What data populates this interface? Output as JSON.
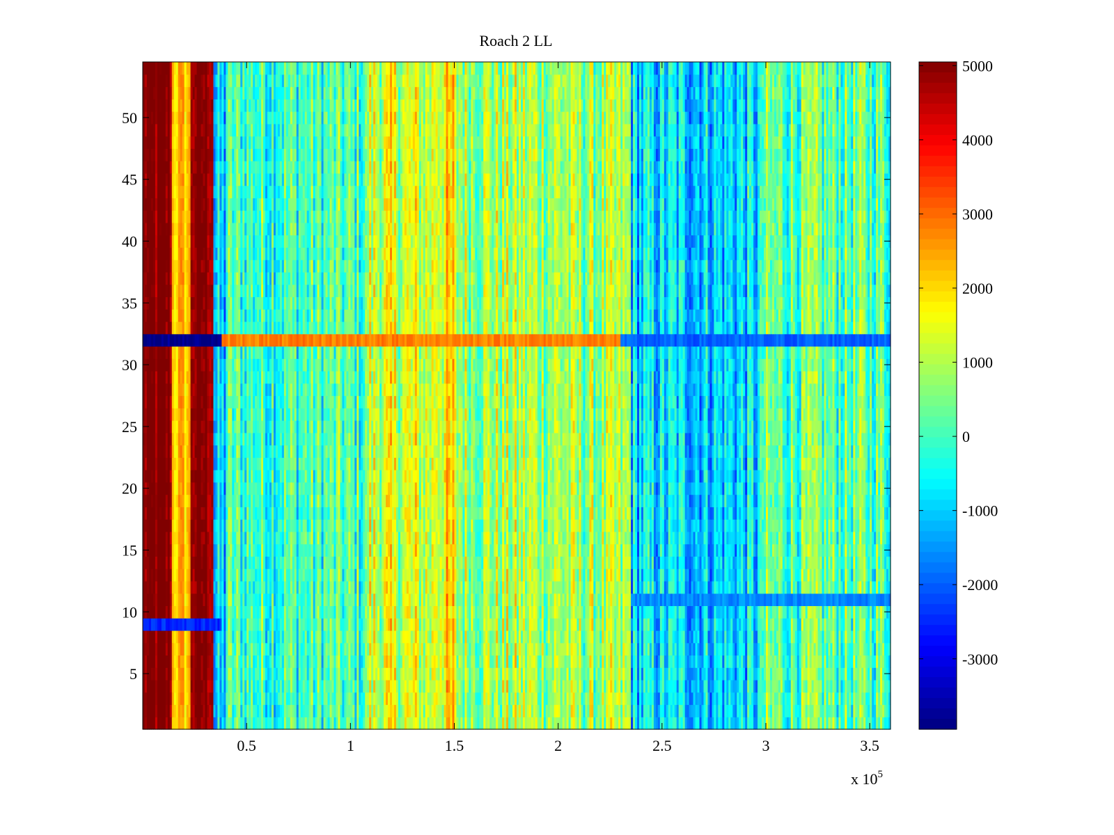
{
  "chart_data": {
    "type": "heatmap",
    "title": "Roach 2 LL",
    "xlabel": "",
    "ylabel": "",
    "x_multiplier_label": "x 10",
    "x_multiplier_exponent": "5",
    "xlim": [
      0,
      3.6
    ],
    "ylim": [
      0.5,
      54.5
    ],
    "x_ticks": [
      0.5,
      1,
      1.5,
      2,
      2.5,
      3,
      3.5
    ],
    "x_tick_labels": [
      "0.5",
      "1",
      "1.5",
      "2",
      "2.5",
      "3",
      "3.5"
    ],
    "y_ticks": [
      5,
      10,
      15,
      20,
      25,
      30,
      35,
      40,
      45,
      50
    ],
    "y_tick_labels": [
      "5",
      "10",
      "15",
      "20",
      "25",
      "30",
      "35",
      "40",
      "45",
      "50"
    ],
    "colorbar": {
      "colormap": "jet",
      "clim": [
        -3950,
        5050
      ],
      "ticks": [
        5000,
        4000,
        3000,
        2000,
        1000,
        0,
        -1000,
        -2000,
        -3000
      ],
      "tick_labels": [
        "5000",
        "4000",
        "3000",
        "2000",
        "1000",
        "0",
        "-1000",
        "-2000",
        "-3000"
      ]
    },
    "rows": 54,
    "x_segments": [
      {
        "x": [
          0,
          0.14
        ],
        "value": 5000
      },
      {
        "x": [
          0.14,
          0.23
        ],
        "value": 2200
      },
      {
        "x": [
          0.23,
          0.34
        ],
        "value": 5000
      },
      {
        "x": [
          0.34,
          0.4
        ],
        "value": -1200
      },
      {
        "x": [
          0.4,
          1.08
        ],
        "value": 0
      },
      {
        "x": [
          1.08,
          1.4
        ],
        "value": 1200
      },
      {
        "x": [
          1.4,
          1.5
        ],
        "value": 1700
      },
      {
        "x": [
          1.5,
          2.05
        ],
        "value": 900
      },
      {
        "x": [
          2.05,
          2.35
        ],
        "value": 700
      },
      {
        "x": [
          2.35,
          2.98
        ],
        "value": -900
      },
      {
        "x": [
          2.98,
          3.6
        ],
        "value": 200
      }
    ],
    "row_anomalies": [
      {
        "row": 32,
        "x": [
          0,
          0.38
        ],
        "value": -3900
      },
      {
        "row": 32,
        "x": [
          0.38,
          2.3
        ],
        "value": 2800
      },
      {
        "row": 32,
        "x": [
          2.3,
          3.6
        ],
        "value": -2000
      },
      {
        "row": 9,
        "x": [
          0,
          0.38
        ],
        "value": -2500
      },
      {
        "row": 11,
        "x": [
          2.35,
          3.6
        ],
        "value": -1600
      }
    ]
  }
}
